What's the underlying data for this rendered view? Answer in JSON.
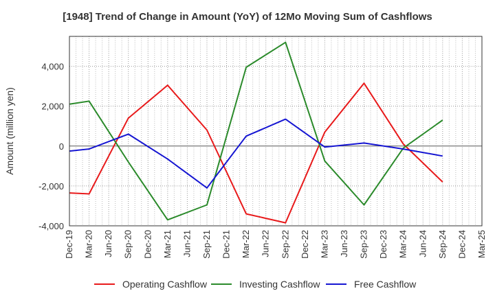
{
  "chart_data": {
    "type": "line",
    "title": "[1948]  Trend of Change in Amount (YoY) of 12Mo Moving Sum of Cashflows",
    "xlabel": "",
    "ylabel": "Amount (million yen)",
    "ylim": [
      -4000,
      5500
    ],
    "yticks": [
      -4000,
      -2000,
      0,
      2000,
      4000
    ],
    "ytick_labels": [
      "-4,000",
      "-2,000",
      "0",
      "2,000",
      "4,000"
    ],
    "grid": true,
    "legend_position": "bottom",
    "categories": [
      "Dec-19",
      "Mar-20",
      "Jun-20",
      "Sep-20",
      "Dec-20",
      "Mar-21",
      "Jun-21",
      "Sep-21",
      "Dec-21",
      "Mar-22",
      "Jun-22",
      "Sep-22",
      "Dec-22",
      "Mar-23",
      "Jun-23",
      "Sep-23",
      "Dec-23",
      "Mar-24",
      "Jun-24",
      "Sep-24",
      "Dec-24",
      "Mar-25"
    ],
    "series": [
      {
        "name": "Operating Cashflow",
        "color": "#e8191a",
        "values": [
          -2350,
          -2400,
          null,
          1400,
          null,
          3050,
          null,
          800,
          null,
          -3400,
          null,
          -3850,
          null,
          700,
          null,
          3150,
          null,
          100,
          null,
          -1800,
          null,
          null
        ]
      },
      {
        "name": "Investing Cashflow",
        "color": "#2a8a2a",
        "values": [
          2100,
          2250,
          null,
          -800,
          null,
          -3700,
          null,
          -2950,
          null,
          3950,
          null,
          5200,
          null,
          -750,
          null,
          -2950,
          null,
          -100,
          null,
          1300,
          null,
          null
        ]
      },
      {
        "name": "Free Cashflow",
        "color": "#1515d2",
        "values": [
          -250,
          -150,
          null,
          600,
          null,
          -650,
          null,
          -2100,
          null,
          500,
          null,
          1350,
          null,
          -50,
          null,
          150,
          null,
          -150,
          null,
          -500,
          null,
          null
        ]
      }
    ]
  }
}
